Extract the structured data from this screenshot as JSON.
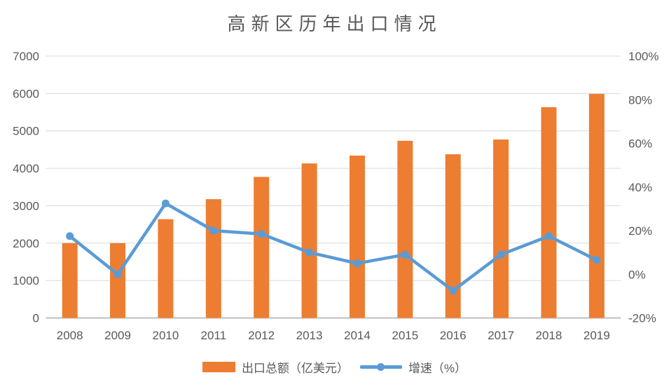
{
  "title": "高新区历年出口情况",
  "colors": {
    "bar": "#ED7D31",
    "line": "#5B9BD5",
    "grid": "#D9D9D9",
    "axis_line": "#BFBFBF",
    "text": "#595959"
  },
  "chart_data": {
    "type": "bar",
    "subtype": "bar-line-combo",
    "title": "高新区历年出口情况",
    "categories": [
      "2008",
      "2009",
      "2010",
      "2011",
      "2012",
      "2013",
      "2014",
      "2015",
      "2016",
      "2017",
      "2018",
      "2019"
    ],
    "series": [
      {
        "name": "出口总额（亿美元）",
        "type": "bar",
        "axis": "left",
        "color": "#ED7D31",
        "values": [
          2000,
          2000,
          2640,
          3175,
          3770,
          4130,
          4340,
          4735,
          4375,
          4770,
          5635,
          5990
        ]
      },
      {
        "name": "增速（%）",
        "type": "line",
        "axis": "right",
        "color": "#5B9BD5",
        "values": [
          17.5,
          0,
          32.5,
          20,
          18.5,
          10,
          5,
          9,
          -7.5,
          9,
          17.5,
          6.5
        ]
      }
    ],
    "left_axis": {
      "min": 0,
      "max": 7000,
      "step": 1000,
      "tick_labels": [
        "7000",
        "6000",
        "5000",
        "4000",
        "3000",
        "2000",
        "1000",
        "0"
      ]
    },
    "right_axis": {
      "min": -20,
      "max": 100,
      "step": 20,
      "tick_labels": [
        "100%",
        "80%",
        "60%",
        "40%",
        "20%",
        "0%",
        "-20%"
      ]
    },
    "grid": true,
    "legend_position": "bottom"
  },
  "legend": {
    "bar_label": "出口总额（亿美元）",
    "line_label": "增速（%）"
  }
}
